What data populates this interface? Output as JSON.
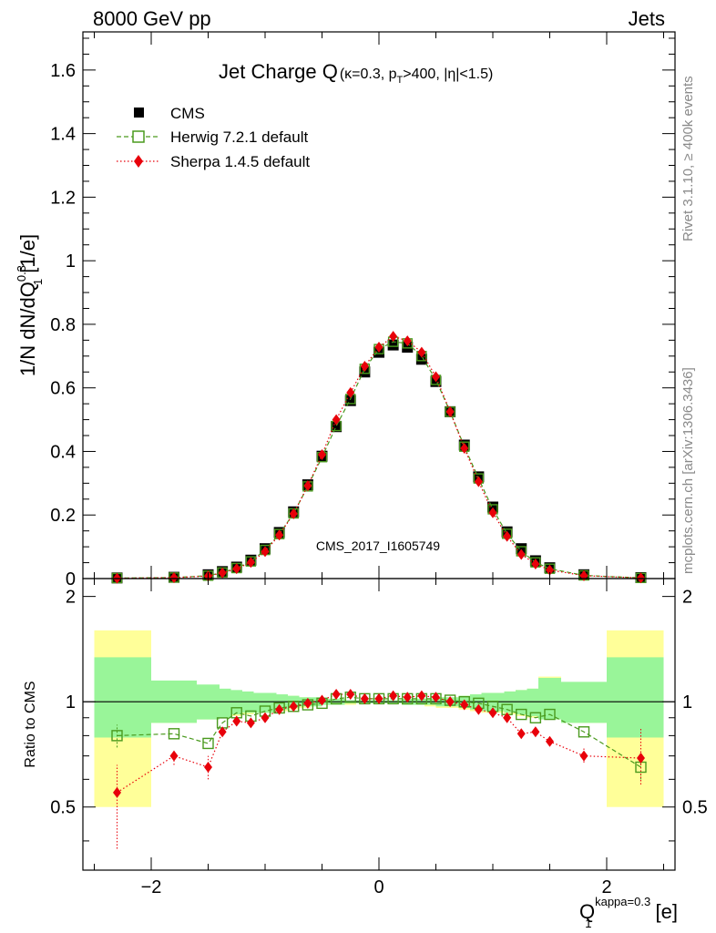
{
  "header": {
    "left": "8000 GeV pp",
    "right": "Jets"
  },
  "side": {
    "rivet": "Rivet 3.1.10, ≥ 400k events",
    "mcplots": "mcplots.cern.ch [arXiv:1306.3436]"
  },
  "chart_data": [
    {
      "type": "scatter",
      "title_main": "Jet Charge Q",
      "title_sub_a": "(κ=0.3, p",
      "title_sub_t": "T",
      "title_sub_b": ">400, |η|<1.5)",
      "ylabel_a": "1/N dN/dQ",
      "ylabel_sup": "0.3",
      "ylabel_sub": "1",
      "ylabel_b": " [1/e]",
      "watermark": "CMS_2017_I1605749",
      "ylim": [
        0,
        1.72
      ],
      "yticks": [
        "0",
        "0.2",
        "0.4",
        "0.6",
        "0.8",
        "1",
        "1.2",
        "1.4",
        "1.6"
      ],
      "legend": [
        "CMS",
        "Herwig 7.2.1 default",
        "Sherpa 1.4.5 default"
      ],
      "x": [
        -2.3,
        -1.8,
        -1.5,
        -1.375,
        -1.25,
        -1.125,
        -1.0,
        -0.875,
        -0.75,
        -0.625,
        -0.5,
        -0.375,
        -0.25,
        -0.125,
        0.0,
        0.125,
        0.25,
        0.375,
        0.5,
        0.625,
        0.75,
        0.875,
        1.0,
        1.125,
        1.25,
        1.375,
        1.5,
        1.8,
        2.3
      ],
      "series": [
        {
          "name": "CMS",
          "values": [
            0.002,
            0.004,
            0.012,
            0.022,
            0.036,
            0.058,
            0.094,
            0.145,
            0.21,
            0.295,
            0.385,
            0.478,
            0.56,
            0.65,
            0.712,
            0.735,
            0.728,
            0.69,
            0.62,
            0.525,
            0.42,
            0.32,
            0.225,
            0.147,
            0.094,
            0.056,
            0.034,
            0.012,
            0.003
          ]
        },
        {
          "name": "Herwig 7.2.1 default",
          "values": [
            0.0016,
            0.0032,
            0.009,
            0.019,
            0.033,
            0.054,
            0.09,
            0.14,
            0.205,
            0.29,
            0.382,
            0.48,
            0.565,
            0.66,
            0.722,
            0.745,
            0.74,
            0.7,
            0.625,
            0.525,
            0.415,
            0.315,
            0.218,
            0.141,
            0.086,
            0.051,
            0.031,
            0.01,
            0.002
          ]
        },
        {
          "name": "Sherpa 1.4.5 default",
          "values": [
            0.0011,
            0.0028,
            0.008,
            0.018,
            0.031,
            0.051,
            0.085,
            0.137,
            0.204,
            0.292,
            0.39,
            0.5,
            0.585,
            0.668,
            0.728,
            0.762,
            0.748,
            0.712,
            0.635,
            0.525,
            0.41,
            0.305,
            0.207,
            0.133,
            0.076,
            0.046,
            0.027,
            0.009,
            0.002
          ]
        }
      ]
    },
    {
      "type": "scatter",
      "ylabel": "Ratio to CMS",
      "xlabel_a": "Q",
      "xlabel_sub": "1",
      "xlabel_sup": "kappa=0.3",
      "xlabel_b": " [e]",
      "ylim": [
        0.33,
        2.25
      ],
      "yticks": [
        "0.5",
        "1",
        "2"
      ],
      "xlim": [
        -2.6,
        2.6
      ],
      "xticks": [
        "−2",
        "0",
        "2"
      ],
      "bin_edges": [
        -2.5,
        -2.0,
        -1.6,
        -1.4,
        -1.3,
        -1.2,
        -1.1,
        -0.9,
        -0.8,
        -0.7,
        -0.6,
        -0.5,
        -0.4,
        -0.3,
        -0.2,
        -0.1,
        0.0,
        0.1,
        0.2,
        0.3,
        0.4,
        0.5,
        0.6,
        0.7,
        0.8,
        0.9,
        1.1,
        1.2,
        1.3,
        1.4,
        1.6,
        2.0,
        2.5
      ],
      "band_stat_lo": [
        0.79,
        0.87,
        0.89,
        0.9,
        0.92,
        0.93,
        0.93,
        0.95,
        0.96,
        0.97,
        0.97,
        0.98,
        0.98,
        0.99,
        0.99,
        0.99,
        0.99,
        0.99,
        0.98,
        0.98,
        0.98,
        0.97,
        0.97,
        0.96,
        0.95,
        0.94,
        0.93,
        0.92,
        0.91,
        0.89,
        0.87,
        0.79
      ],
      "band_stat_hi": [
        1.34,
        1.15,
        1.12,
        1.09,
        1.08,
        1.07,
        1.06,
        1.05,
        1.04,
        1.03,
        1.03,
        1.02,
        1.02,
        1.01,
        1.01,
        1.01,
        1.01,
        1.01,
        1.02,
        1.02,
        1.02,
        1.03,
        1.03,
        1.04,
        1.05,
        1.06,
        1.07,
        1.08,
        1.09,
        1.17,
        1.14,
        1.34
      ],
      "band_tot_lo": [
        0.5,
        0.87,
        0.89,
        0.9,
        0.91,
        0.92,
        0.93,
        0.94,
        0.95,
        0.96,
        0.97,
        0.98,
        0.98,
        0.98,
        0.99,
        0.99,
        0.99,
        0.99,
        0.98,
        0.98,
        0.97,
        0.96,
        0.96,
        0.95,
        0.94,
        0.93,
        0.92,
        0.91,
        0.9,
        0.89,
        0.87,
        0.5
      ],
      "band_tot_hi": [
        1.6,
        1.14,
        1.09,
        1.08,
        1.07,
        1.06,
        1.05,
        1.04,
        1.04,
        1.03,
        1.02,
        1.02,
        1.01,
        1.01,
        1.01,
        1.01,
        1.01,
        1.01,
        1.01,
        1.02,
        1.02,
        1.03,
        1.03,
        1.04,
        1.05,
        1.06,
        1.07,
        1.08,
        1.09,
        1.18,
        1.1,
        1.6
      ],
      "x": [
        -2.3,
        -1.8,
        -1.5,
        -1.375,
        -1.25,
        -1.125,
        -1.0,
        -0.875,
        -0.75,
        -0.625,
        -0.5,
        -0.375,
        -0.25,
        -0.125,
        0.0,
        0.125,
        0.25,
        0.375,
        0.5,
        0.625,
        0.75,
        0.875,
        1.0,
        1.125,
        1.25,
        1.375,
        1.5,
        1.8,
        2.3
      ],
      "series": [
        {
          "name": "Herwig 7.2.1 default",
          "values": [
            0.8,
            0.81,
            0.76,
            0.87,
            0.93,
            0.91,
            0.94,
            0.96,
            0.97,
            0.98,
            0.99,
            1.02,
            1.03,
            1.02,
            1.02,
            1.02,
            1.02,
            1.02,
            1.02,
            1.01,
            1.0,
            0.99,
            0.97,
            0.95,
            0.92,
            0.9,
            0.92,
            0.82,
            0.65
          ]
        },
        {
          "name": "Sherpa 1.4.5 default",
          "values": [
            0.55,
            0.7,
            0.65,
            0.82,
            0.88,
            0.87,
            0.9,
            0.95,
            0.97,
            0.99,
            1.01,
            1.05,
            1.05,
            1.02,
            1.02,
            1.04,
            1.03,
            1.04,
            1.03,
            1.0,
            0.98,
            0.95,
            0.93,
            0.9,
            0.81,
            0.82,
            0.77,
            0.7,
            0.69
          ]
        }
      ]
    }
  ]
}
